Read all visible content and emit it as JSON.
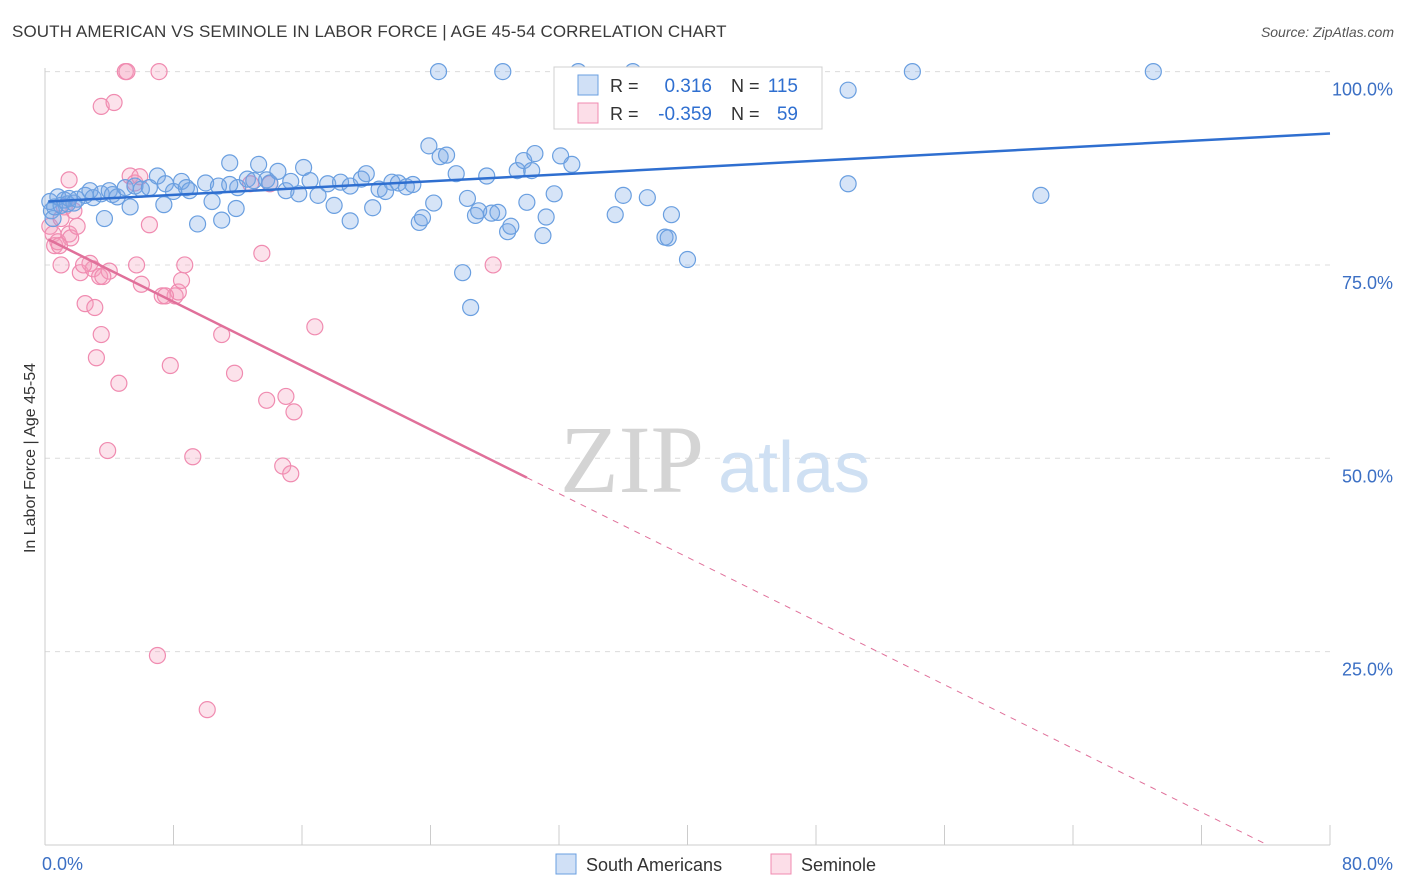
{
  "header": {
    "title": "SOUTH AMERICAN VS SEMINOLE IN LABOR FORCE | AGE 45-54 CORRELATION CHART",
    "source": "Source: ZipAtlas.com"
  },
  "watermark": {
    "zip": "ZIP",
    "atlas": "atlas"
  },
  "stats_legend": [
    {
      "r_label": "R =",
      "r_value": "0.316",
      "n_label": "N =",
      "n_value": "115",
      "color": "#6a9fe0"
    },
    {
      "r_label": "R =",
      "r_value": "-0.359",
      "n_label": "N =",
      "n_value": "59",
      "color": "#f08bb0"
    }
  ],
  "bottom_legend": [
    {
      "label": "South Americans",
      "color": "#6a9fe0"
    },
    {
      "label": "Seminole",
      "color": "#f08bb0"
    }
  ],
  "colors": {
    "blue_line": "#2f6fd0",
    "pink_line": "#e0709a",
    "blue_fill": "rgba(120,165,230,0.30)",
    "blue_stroke": "#6a9fe0",
    "pink_fill": "rgba(245,160,190,0.30)",
    "pink_stroke": "#f08bb0",
    "tick_label": "#3b6fc4"
  },
  "chart_data": {
    "type": "scatter",
    "xlabel": "",
    "ylabel": "In Labor Force | Age 45-54",
    "xlim": [
      0,
      80
    ],
    "ylim": [
      0,
      101.5
    ],
    "x_tick_labels": [
      {
        "value": 0,
        "label": "0.0%"
      },
      {
        "value": 80,
        "label": "80.0%"
      }
    ],
    "y_tick_labels": [
      {
        "value": 25,
        "label": "25.0%"
      },
      {
        "value": 50,
        "label": "50.0%"
      },
      {
        "value": 75,
        "label": "75.0%"
      },
      {
        "value": 100,
        "label": "100.0%"
      }
    ],
    "grid": true,
    "legend_position": "top-center",
    "series": [
      {
        "name": "South Americans",
        "trend": {
          "x": [
            0.2,
            80
          ],
          "y": [
            83.2,
            92.0
          ]
        },
        "points": [
          [
            0.3,
            83.2
          ],
          [
            0.4,
            82.0
          ],
          [
            0.5,
            81.0
          ],
          [
            0.6,
            82.5
          ],
          [
            0.8,
            83.8
          ],
          [
            1.0,
            82.7
          ],
          [
            1.2,
            83.4
          ],
          [
            1.4,
            82.9
          ],
          [
            1.5,
            83.6
          ],
          [
            1.8,
            83.0
          ],
          [
            2.0,
            83.5
          ],
          [
            2.5,
            84.0
          ],
          [
            2.8,
            84.6
          ],
          [
            3.0,
            83.7
          ],
          [
            3.5,
            84.2
          ],
          [
            3.7,
            81.0
          ],
          [
            4.0,
            84.6
          ],
          [
            4.2,
            84.1
          ],
          [
            4.5,
            83.8
          ],
          [
            5.0,
            85.0
          ],
          [
            5.3,
            82.5
          ],
          [
            5.6,
            85.2
          ],
          [
            6.0,
            84.8
          ],
          [
            6.5,
            85.0
          ],
          [
            7.0,
            86.5
          ],
          [
            7.4,
            82.8
          ],
          [
            7.5,
            85.5
          ],
          [
            8.0,
            84.5
          ],
          [
            8.5,
            85.8
          ],
          [
            8.8,
            85.0
          ],
          [
            9.0,
            84.6
          ],
          [
            9.5,
            80.3
          ],
          [
            10.0,
            85.6
          ],
          [
            10.4,
            83.2
          ],
          [
            10.8,
            85.2
          ],
          [
            11.0,
            80.8
          ],
          [
            11.5,
            88.2
          ],
          [
            11.9,
            82.3
          ],
          [
            12.0,
            85.0
          ],
          [
            12.6,
            86.1
          ],
          [
            13.0,
            85.9
          ],
          [
            13.3,
            88.0
          ],
          [
            13.8,
            86.0
          ],
          [
            14.0,
            85.6
          ],
          [
            14.5,
            87.1
          ],
          [
            15.0,
            84.6
          ],
          [
            15.3,
            85.8
          ],
          [
            15.8,
            84.2
          ],
          [
            16.1,
            87.6
          ],
          [
            16.5,
            85.9
          ],
          [
            17.0,
            84.0
          ],
          [
            17.6,
            85.5
          ],
          [
            18.0,
            82.7
          ],
          [
            18.4,
            85.7
          ],
          [
            19.0,
            85.2
          ],
          [
            19.0,
            80.7
          ],
          [
            19.7,
            86.1
          ],
          [
            20.0,
            86.8
          ],
          [
            20.4,
            82.4
          ],
          [
            20.8,
            84.8
          ],
          [
            21.2,
            84.5
          ],
          [
            21.6,
            85.7
          ],
          [
            22.0,
            85.6
          ],
          [
            22.5,
            85.1
          ],
          [
            22.9,
            85.4
          ],
          [
            23.3,
            80.5
          ],
          [
            23.5,
            81.1
          ],
          [
            23.9,
            90.4
          ],
          [
            24.2,
            83.0
          ],
          [
            24.6,
            89.0
          ],
          [
            25.0,
            89.2
          ],
          [
            25.6,
            86.8
          ],
          [
            26.0,
            74.0
          ],
          [
            26.3,
            83.6
          ],
          [
            26.5,
            69.5
          ],
          [
            26.8,
            81.4
          ],
          [
            27.0,
            82.0
          ],
          [
            27.5,
            86.5
          ],
          [
            27.8,
            81.7
          ],
          [
            28.2,
            81.8
          ],
          [
            28.8,
            79.3
          ],
          [
            29.0,
            80.0
          ],
          [
            29.4,
            87.2
          ],
          [
            29.8,
            88.5
          ],
          [
            30.0,
            83.1
          ],
          [
            30.3,
            87.2
          ],
          [
            30.5,
            89.4
          ],
          [
            31.0,
            78.8
          ],
          [
            31.2,
            81.2
          ],
          [
            31.7,
            84.2
          ],
          [
            32.1,
            89.1
          ],
          [
            32.8,
            88.0
          ],
          [
            33.2,
            100.0
          ],
          [
            35.0,
            97.8
          ],
          [
            35.5,
            81.5
          ],
          [
            36.0,
            84.0
          ],
          [
            37.5,
            83.7
          ],
          [
            38.6,
            78.6
          ],
          [
            38.8,
            78.5
          ],
          [
            39.0,
            81.5
          ],
          [
            40.0,
            75.7
          ],
          [
            50.0,
            97.6
          ],
          [
            50.0,
            85.5
          ],
          [
            54.0,
            100.0
          ],
          [
            62.0,
            84.0
          ],
          [
            69.0,
            100.0
          ],
          [
            24.5,
            100.0
          ],
          [
            28.5,
            100.0
          ],
          [
            36.6,
            100.0
          ],
          [
            11.5,
            85.4
          ]
        ]
      },
      {
        "name": "Seminole",
        "trend": {
          "x": [
            0.2,
            30.0
          ],
          "y": [
            78.3,
            47.5
          ]
        },
        "trend_dashed": {
          "x": [
            30.0,
            80
          ],
          "y": [
            47.5,
            -4.0
          ]
        },
        "points": [
          [
            0.3,
            80.0
          ],
          [
            0.5,
            79.0
          ],
          [
            0.6,
            77.5
          ],
          [
            0.8,
            78.0
          ],
          [
            1.0,
            75.0
          ],
          [
            1.2,
            82.5
          ],
          [
            1.5,
            86.0
          ],
          [
            1.5,
            79.0
          ],
          [
            1.6,
            78.5
          ],
          [
            1.8,
            82.0
          ],
          [
            2.0,
            80.0
          ],
          [
            2.2,
            74.0
          ],
          [
            2.5,
            70.0
          ],
          [
            2.8,
            75.2
          ],
          [
            3.0,
            74.5
          ],
          [
            3.1,
            69.5
          ],
          [
            3.2,
            63.0
          ],
          [
            3.4,
            73.5
          ],
          [
            3.5,
            95.5
          ],
          [
            3.5,
            66.0
          ],
          [
            3.9,
            51.0
          ],
          [
            4.0,
            74.2
          ],
          [
            4.3,
            96.0
          ],
          [
            4.6,
            59.7
          ],
          [
            5.0,
            100.0
          ],
          [
            5.1,
            100.0
          ],
          [
            5.3,
            86.5
          ],
          [
            5.6,
            85.6
          ],
          [
            5.7,
            75.0
          ],
          [
            6.0,
            72.5
          ],
          [
            6.5,
            80.2
          ],
          [
            7.0,
            24.5
          ],
          [
            7.1,
            100.0
          ],
          [
            7.3,
            71.0
          ],
          [
            7.8,
            62.0
          ],
          [
            8.1,
            71.0
          ],
          [
            8.3,
            71.5
          ],
          [
            8.5,
            73.0
          ],
          [
            8.7,
            75.0
          ],
          [
            9.2,
            50.2
          ],
          [
            10.1,
            17.5
          ],
          [
            11.0,
            66.0
          ],
          [
            11.8,
            61.0
          ],
          [
            13.5,
            76.5
          ],
          [
            13.8,
            57.5
          ],
          [
            14.0,
            85.5
          ],
          [
            14.8,
            49.0
          ],
          [
            15.0,
            58.0
          ],
          [
            15.3,
            48.0
          ],
          [
            15.5,
            56.0
          ],
          [
            16.8,
            67.0
          ],
          [
            27.9,
            75.0
          ],
          [
            1.0,
            81.0
          ],
          [
            0.9,
            77.5
          ],
          [
            2.4,
            75.0
          ],
          [
            5.9,
            86.4
          ],
          [
            7.5,
            71.0
          ],
          [
            12.8,
            85.5
          ],
          [
            3.6,
            73.5
          ]
        ]
      }
    ]
  }
}
